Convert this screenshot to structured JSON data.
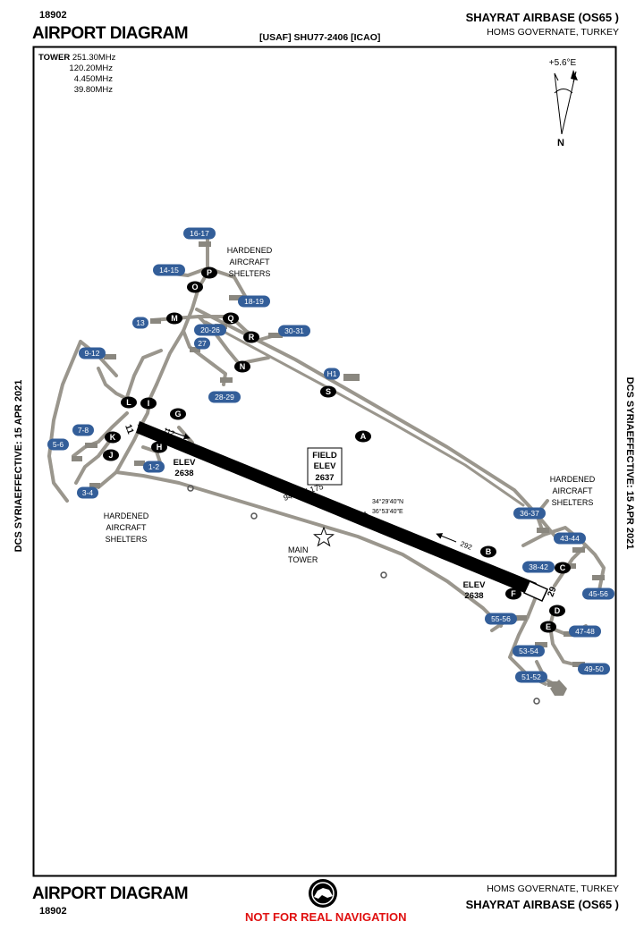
{
  "header": {
    "chart_number": "18902",
    "title": "AIRPORT DIAGRAM",
    "airport_name": "SHAYRAT AIRBASE (OS65 )",
    "region": "HOMS GOVERNATE, TURKEY",
    "identifier": "[USAF] SHU77-2406 [ICAO]"
  },
  "side_notes": {
    "left": "DCS SYRIAEFFECTIVE: 15 APR 2021",
    "right": "DCS SYRIAEFFECTIVE: 15 APR 2021"
  },
  "frequencies": {
    "label": "TOWER",
    "values": [
      "251.30MHz",
      "120.20MHz",
      "4.450MHz",
      "39.80MHz"
    ]
  },
  "magnetic_variation": "+5.6°E",
  "north_label": "N",
  "runway": {
    "dimensions": "9417 X 175",
    "end_11_number": "11",
    "end_29_number": "29",
    "heading_112": "112",
    "heading_292": "292",
    "coordinates": [
      "34°29'40\"N",
      "36°53'40\"E"
    ],
    "field_elev_lines": [
      "FIELD",
      "ELEV",
      "2637"
    ],
    "elev_west": [
      "ELEV",
      "2638"
    ],
    "elev_east": [
      "ELEV",
      "2638"
    ]
  },
  "taxiways": [
    "A",
    "B",
    "C",
    "D",
    "E",
    "F",
    "G",
    "H",
    "I",
    "J",
    "K",
    "L",
    "M",
    "N",
    "O",
    "P",
    "Q",
    "R",
    "S"
  ],
  "shelters": [
    "16-17",
    "14-15",
    "18-19",
    "13",
    "20-26",
    "30-31",
    "27",
    "H1",
    "28-29",
    "9-12",
    "7-8",
    "5-6",
    "1-2",
    "3-4",
    "36-37",
    "43-44",
    "38-42",
    "45-56",
    "55-56",
    "47-48",
    "53-54",
    "49-50",
    "51-52"
  ],
  "labels": {
    "shelters_north": [
      "HARDENED",
      "AIRCRAFT",
      "SHELTERS"
    ],
    "shelters_west": [
      "HARDENED",
      "AIRCRAFT",
      "SHELTERS"
    ],
    "shelters_east": [
      "HARDENED",
      "AIRCRAFT",
      "SHELTERS"
    ],
    "main_tower": [
      "MAIN",
      "TOWER"
    ]
  },
  "footer": {
    "title": "AIRPORT DIAGRAM",
    "chart_number": "18902",
    "region": "HOMS GOVERNATE, TURKEY",
    "airport_name": "SHAYRAT AIRBASE (OS65 )",
    "warning": "NOT FOR REAL NAVIGATION"
  },
  "colors": {
    "taxiway": "#9a968d",
    "badge_blue": "#335e99",
    "warning": "#e01010"
  }
}
